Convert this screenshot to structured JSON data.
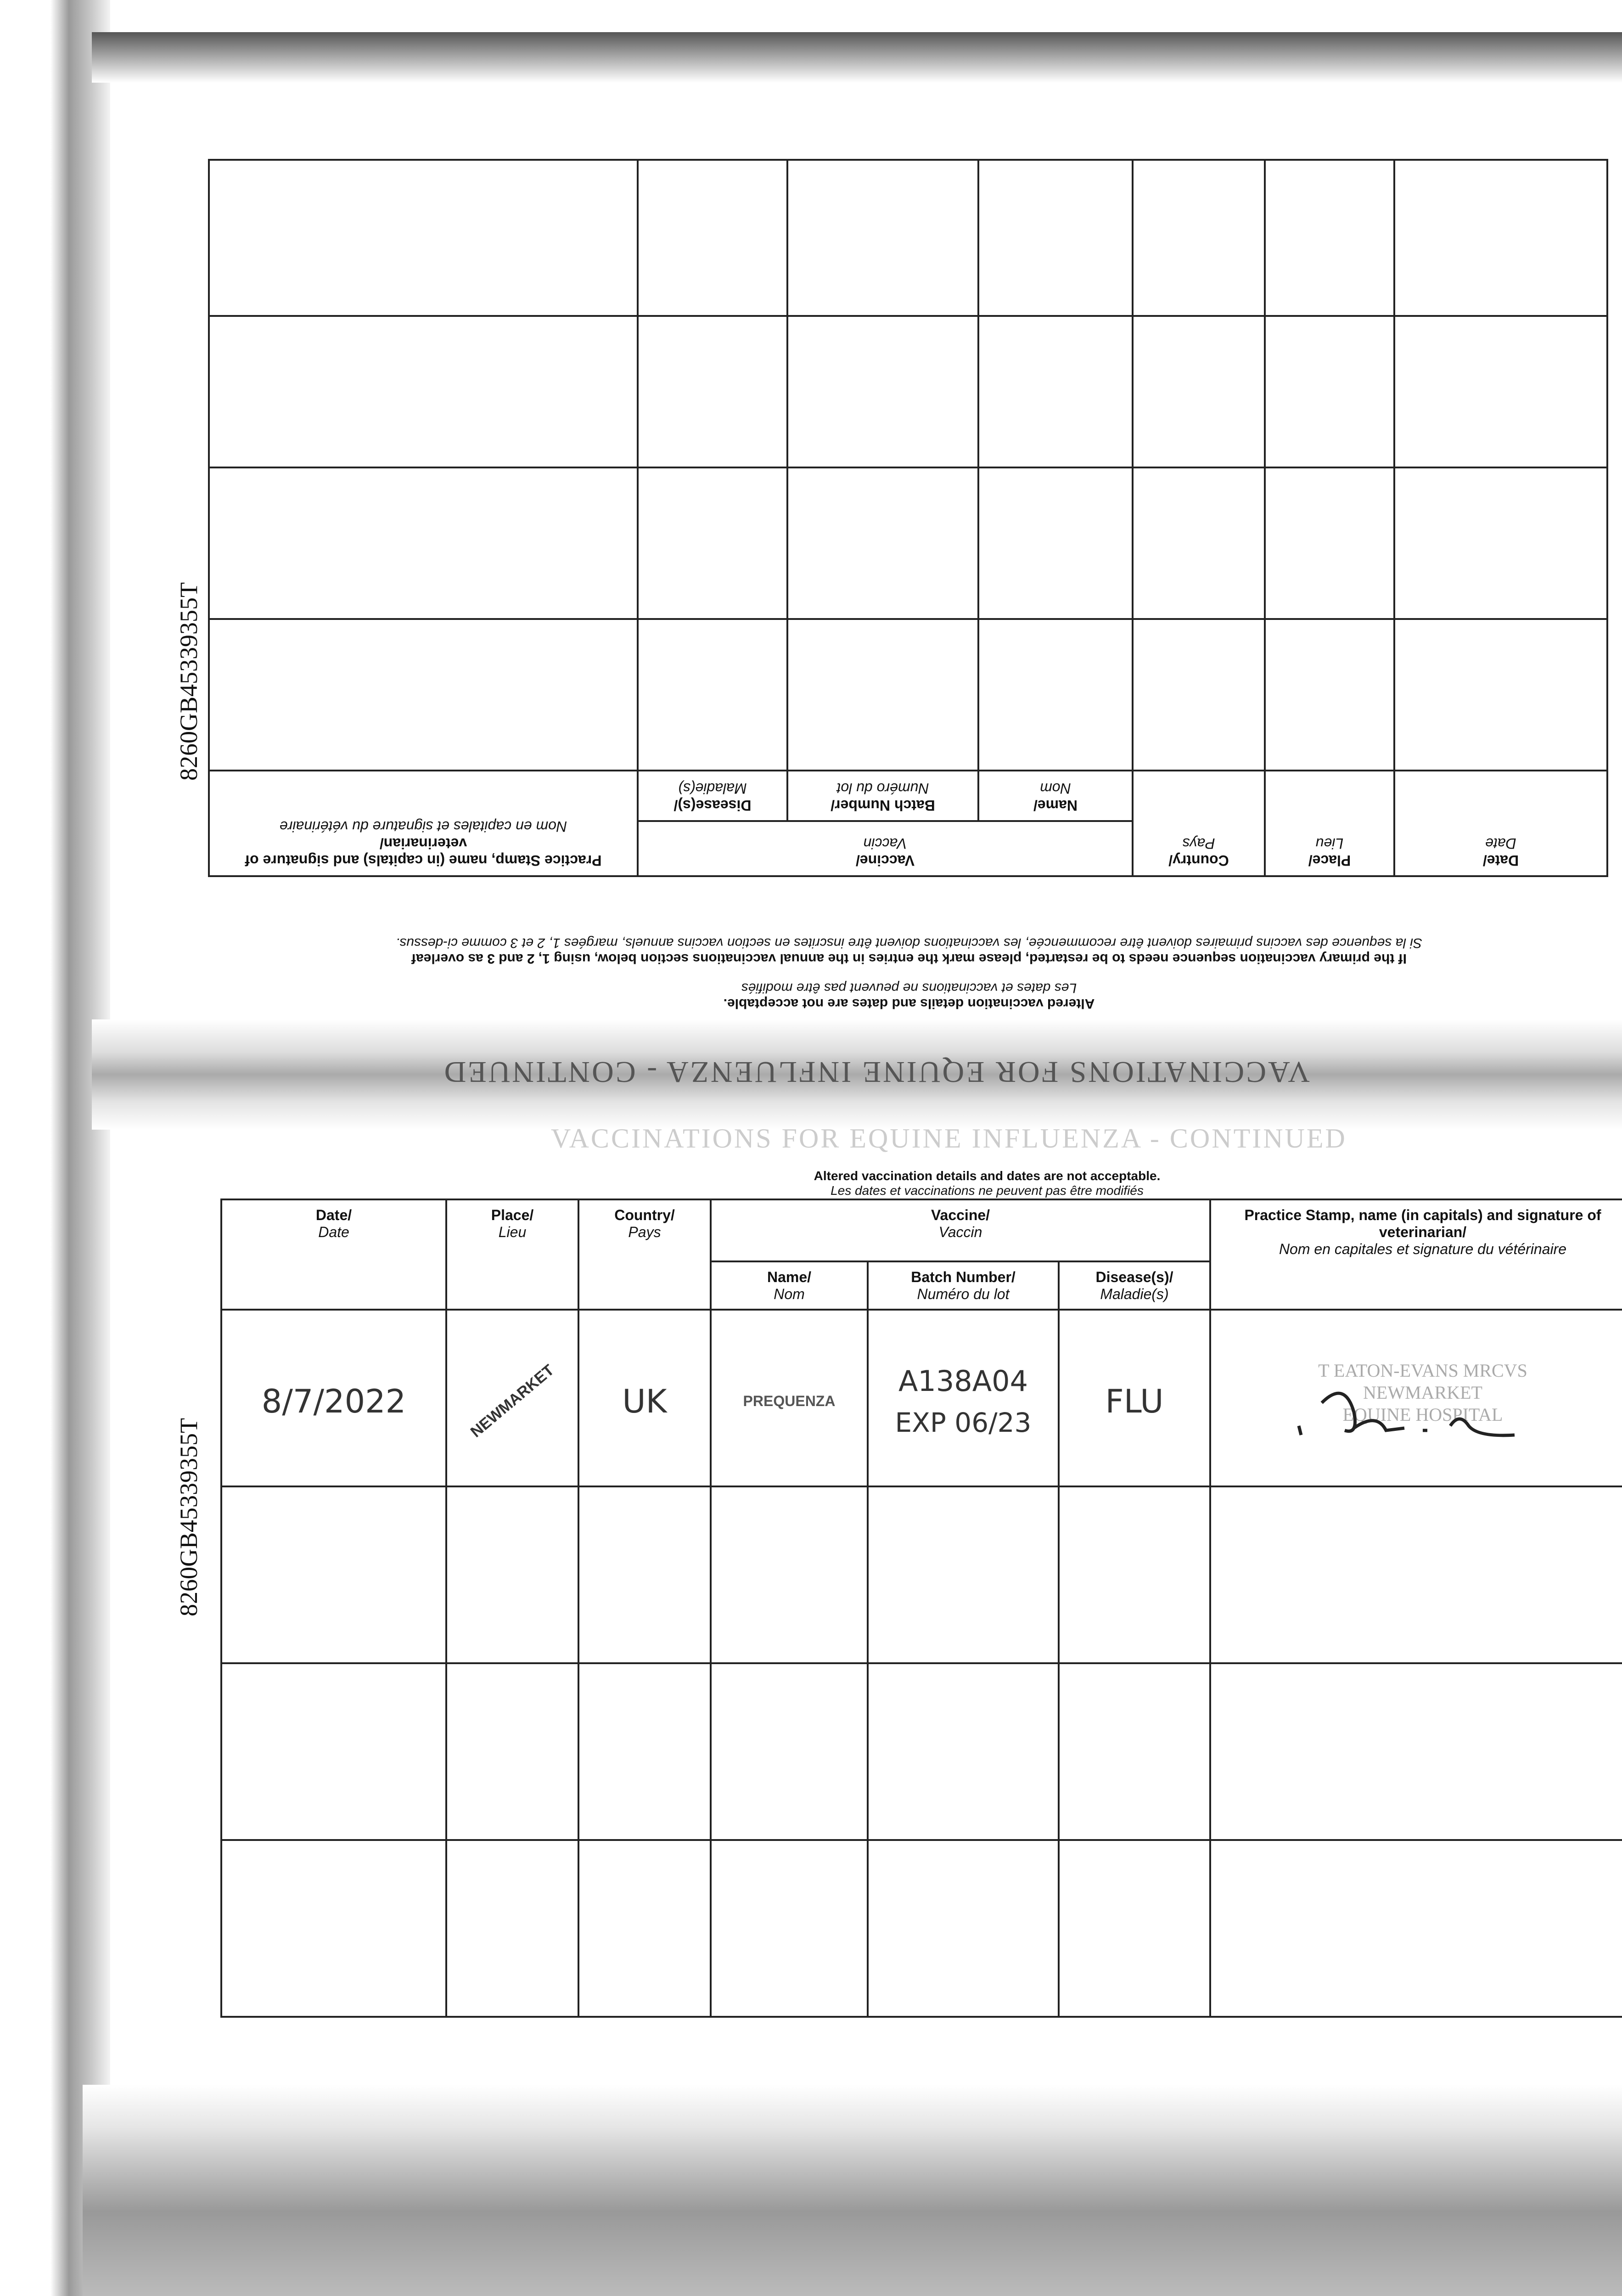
{
  "document_id": "8260GB45339355T",
  "section_title": "VACCINATIONS FOR EQUINE INFLUENZA - CONTINUED",
  "notes": {
    "altered_en": "Altered vaccination details and dates are not acceptable.",
    "altered_fr": "Les dates et vaccinations ne peuvent pas être modifiés",
    "restart_en": "If the primary vaccination sequence needs to be restarted, please mark the entries in the annual vaccinations section below, using 1, 2 and 3 as overleaf",
    "restart_fr": "Si la sequence des vaccins primaires doivent être recommencée, les vaccinations doivent être inscrites en section vaccins annuels, margées 1, 2 et 3 comme ci-dessus."
  },
  "headers": {
    "date": "Date/",
    "date_fr": "Date",
    "place": "Place/",
    "place_fr": "Lieu",
    "country": "Country/",
    "country_fr": "Pays",
    "vaccine": "Vaccine/",
    "vaccine_fr": "Vaccin",
    "name": "Name/",
    "name_fr": "Nom",
    "batch": "Batch Number/",
    "batch_fr": "Numéro du lot",
    "disease": "Disease(s)/",
    "disease_fr": "Maladie(s)",
    "stamp": "Practice Stamp, name (in capitals) and signature of veterinarian/",
    "stamp_fr": "Nom en capitales et signature du vétérinaire"
  },
  "entries": [
    {
      "date": "8/7/2022",
      "place": "NEWMARKET",
      "country": "UK",
      "vaccine_name": "PREQUENZA",
      "batch": "A138A04",
      "expiry": "EXP 06/23",
      "disease": "FLU",
      "stamp_lines": [
        "T EATON-EVANS MRCVS",
        "NEWMARKET",
        "EQUINE HOSPITAL"
      ]
    }
  ]
}
